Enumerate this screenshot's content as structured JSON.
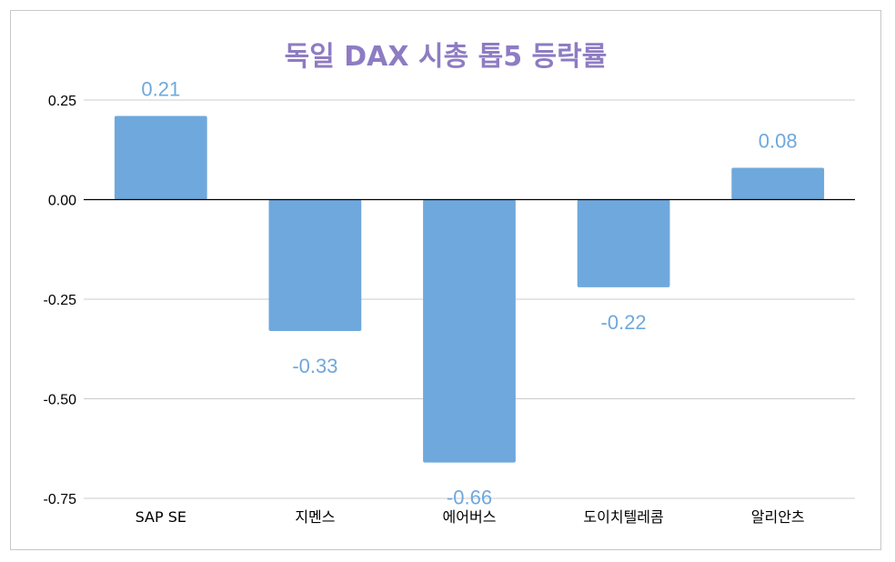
{
  "chart_data": {
    "type": "bar",
    "title": "독일 DAX  시총 톱5 등락률",
    "xlabel": "",
    "ylabel": "",
    "categories": [
      "SAP SE",
      "지멘스",
      "에어버스",
      "도이치텔레콤",
      "알리안츠"
    ],
    "values": [
      0.21,
      -0.33,
      -0.66,
      -0.22,
      0.08
    ],
    "data_labels": [
      "0.21",
      "-0.33",
      "-0.66",
      "-0.22",
      "0.08"
    ],
    "ylim": [
      -0.75,
      0.25
    ],
    "yticks": [
      0.25,
      0,
      -0.25,
      -0.5,
      -0.75
    ],
    "ytick_labels": [
      "0.25",
      "0.00",
      "-0.25",
      "-0.50",
      "-0.75"
    ],
    "grid": true,
    "legend": "none",
    "colors": {
      "bar": "#6fa8dc",
      "data_label": "#6fa8dc",
      "title": "#8e7cc3",
      "grid": "#cccccc",
      "zero_line": "#000000"
    }
  }
}
